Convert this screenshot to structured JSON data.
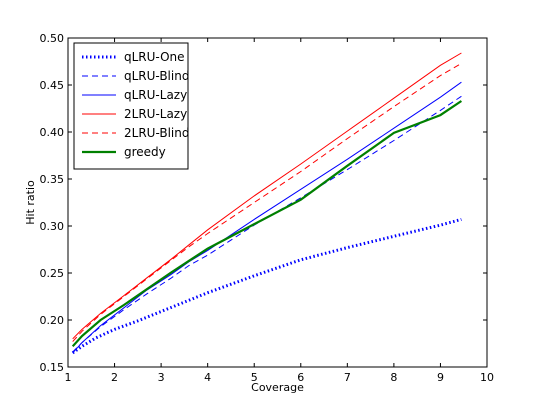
{
  "chart_data": {
    "type": "line",
    "xlabel": "Coverage",
    "ylabel": "Hit ratio",
    "xlim": [
      1,
      10
    ],
    "ylim": [
      0.15,
      0.5
    ],
    "xticks": [
      "1",
      "2",
      "3",
      "4",
      "5",
      "6",
      "7",
      "8",
      "9",
      "10"
    ],
    "yticks": [
      "0.15",
      "0.20",
      "0.25",
      "0.30",
      "0.35",
      "0.40",
      "0.45",
      "0.50"
    ],
    "grid": false,
    "legend_position": "top-left",
    "series": [
      {
        "name": "qLRU-One",
        "color": "#0000ff",
        "style": "dotted",
        "x": [
          1.1,
          1.3,
          1.6,
          2.0,
          2.5,
          3.0,
          3.5,
          4.0,
          5.0,
          6.0,
          7.0,
          8.0,
          9.0,
          9.45
        ],
        "y": [
          0.165,
          0.172,
          0.181,
          0.19,
          0.199,
          0.209,
          0.219,
          0.229,
          0.247,
          0.264,
          0.277,
          0.289,
          0.301,
          0.307
        ]
      },
      {
        "name": "qLRU-Blind",
        "color": "#0000ff",
        "style": "dashed",
        "x": [
          1.1,
          1.3,
          1.7,
          2.2,
          2.7,
          3.2,
          3.6,
          4.0,
          5.0,
          6.0,
          7.0,
          8.0,
          9.0,
          9.45
        ],
        "y": [
          0.166,
          0.176,
          0.193,
          0.211,
          0.228,
          0.244,
          0.258,
          0.269,
          0.301,
          0.33,
          0.36,
          0.391,
          0.423,
          0.438
        ]
      },
      {
        "name": "qLRU-Lazy",
        "color": "#0000ff",
        "style": "solid",
        "x": [
          1.1,
          1.3,
          1.7,
          2.2,
          2.7,
          3.2,
          3.6,
          4.0,
          5.0,
          6.0,
          7.0,
          8.0,
          9.0,
          9.45
        ],
        "y": [
          0.165,
          0.176,
          0.194,
          0.213,
          0.232,
          0.248,
          0.262,
          0.274,
          0.307,
          0.339,
          0.371,
          0.404,
          0.437,
          0.453
        ]
      },
      {
        "name": "2LRU-Lazy",
        "color": "#ff0000",
        "style": "solid",
        "x": [
          1.1,
          1.3,
          1.7,
          2.2,
          2.7,
          3.2,
          3.6,
          4.0,
          5.0,
          6.0,
          7.0,
          8.0,
          9.0,
          9.45
        ],
        "y": [
          0.18,
          0.19,
          0.207,
          0.226,
          0.245,
          0.264,
          0.28,
          0.296,
          0.332,
          0.366,
          0.401,
          0.436,
          0.471,
          0.484
        ]
      },
      {
        "name": "2LRU-Blind",
        "color": "#ff0000",
        "style": "dashed",
        "x": [
          1.1,
          1.3,
          1.7,
          2.2,
          2.7,
          3.2,
          3.6,
          4.0,
          5.0,
          6.0,
          7.0,
          8.0,
          9.0,
          9.45
        ],
        "y": [
          0.177,
          0.188,
          0.206,
          0.225,
          0.244,
          0.263,
          0.278,
          0.292,
          0.325,
          0.358,
          0.393,
          0.427,
          0.46,
          0.473
        ]
      },
      {
        "name": "greedy",
        "color": "#008000",
        "style": "solid-thick",
        "x": [
          1.1,
          1.3,
          1.7,
          2.2,
          2.7,
          3.2,
          3.6,
          4.0,
          5.0,
          6.0,
          7.0,
          8.0,
          9.0,
          9.45
        ],
        "y": [
          0.172,
          0.183,
          0.2,
          0.216,
          0.233,
          0.25,
          0.263,
          0.276,
          0.302,
          0.328,
          0.364,
          0.399,
          0.418,
          0.433
        ]
      }
    ]
  }
}
